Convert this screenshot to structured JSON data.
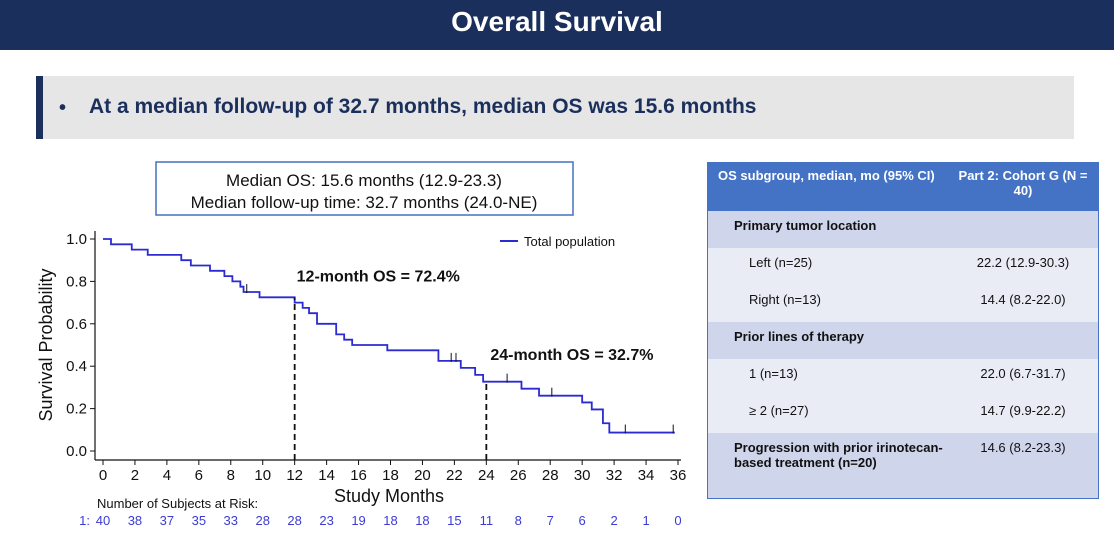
{
  "title": "Overall Survival",
  "banner": {
    "bullet": "•",
    "text": "At a median follow-up of 32.7 months, median OS was 15.6 months"
  },
  "colors": {
    "header_bg": "#1b2f5c",
    "curve": "#2b2bd1",
    "table_header": "#4472c4",
    "row_dark": "#cfd5ea",
    "row_light": "#e9ecf5"
  },
  "chart_data": {
    "type": "line",
    "subtype": "kaplan-meier",
    "summary_box": [
      "Median OS: 15.6 months (12.9-23.3)",
      "Median follow-up time: 32.7 months (24.0-NE)"
    ],
    "xlabel": "Study Months",
    "ylabel": "Survival Probability",
    "xlim": [
      0,
      36
    ],
    "ylim": [
      0,
      1.0
    ],
    "xticks": [
      0,
      2,
      4,
      6,
      8,
      10,
      12,
      14,
      16,
      18,
      20,
      22,
      24,
      26,
      28,
      30,
      32,
      34,
      36
    ],
    "yticks": [
      0.0,
      0.2,
      0.4,
      0.6,
      0.8,
      1.0
    ],
    "ytick_labels": [
      "0.0",
      "0.2",
      "0.4",
      "0.6",
      "0.8",
      "1.0"
    ],
    "legend": {
      "label": "Total population",
      "position": "top-right"
    },
    "series": [
      {
        "name": "Total population",
        "steps": [
          [
            0,
            1.0
          ],
          [
            0.5,
            0.975
          ],
          [
            1.8,
            0.95
          ],
          [
            2.8,
            0.925
          ],
          [
            4.9,
            0.9
          ],
          [
            5.5,
            0.875
          ],
          [
            6.7,
            0.85
          ],
          [
            7.6,
            0.825
          ],
          [
            8.1,
            0.8
          ],
          [
            8.6,
            0.775
          ],
          [
            8.8,
            0.75
          ],
          [
            9.8,
            0.725
          ],
          [
            12.0,
            0.7
          ],
          [
            12.5,
            0.675
          ],
          [
            12.9,
            0.65
          ],
          [
            13.4,
            0.6
          ],
          [
            14.6,
            0.55
          ],
          [
            15.1,
            0.525
          ],
          [
            15.6,
            0.5
          ],
          [
            17.8,
            0.475
          ],
          [
            21.0,
            0.425
          ],
          [
            22.4,
            0.392
          ],
          [
            23.3,
            0.359
          ],
          [
            23.8,
            0.327
          ],
          [
            26.2,
            0.294
          ],
          [
            27.3,
            0.261
          ],
          [
            30.0,
            0.229
          ],
          [
            30.6,
            0.196
          ],
          [
            31.3,
            0.131
          ],
          [
            31.7,
            0.087
          ]
        ],
        "x_end": 35.8,
        "censor_times": [
          9.0,
          21.8,
          22.1,
          25.3,
          28.1,
          32.7,
          35.7
        ]
      }
    ],
    "annotations": [
      {
        "x": 12,
        "y": 0.724,
        "text": "12-month OS = 72.4%"
      },
      {
        "x": 24,
        "y": 0.327,
        "text": "24-month OS = 32.7%"
      }
    ],
    "risk_table": {
      "title": "Number of Subjects at Risk:",
      "row_label": "1:",
      "times": [
        0,
        2,
        4,
        6,
        8,
        10,
        12,
        14,
        16,
        18,
        20,
        22,
        24,
        26,
        28,
        30,
        32,
        34,
        36
      ],
      "counts": [
        40,
        38,
        37,
        35,
        33,
        28,
        28,
        23,
        19,
        18,
        18,
        15,
        11,
        8,
        7,
        6,
        2,
        1,
        0
      ]
    }
  },
  "table": {
    "header_left": "OS subgroup, median, mo (95% CI)",
    "header_right": "Part 2: Cohort G (N = 40)",
    "rows": [
      {
        "kind": "section",
        "label": "Primary tumor location",
        "value": ""
      },
      {
        "kind": "item",
        "label": "Left (n=25)",
        "value": "22.2 (12.9-30.3)"
      },
      {
        "kind": "item",
        "label": "Right (n=13)",
        "value": "14.4 (8.2-22.0)"
      },
      {
        "kind": "section",
        "label": "Prior lines of therapy",
        "value": ""
      },
      {
        "kind": "item",
        "label": "1 (n=13)",
        "value": "22.0 (6.7-31.7)"
      },
      {
        "kind": "item",
        "label": "≥ 2 (n=27)",
        "value": "14.7 (9.9-22.2)"
      },
      {
        "kind": "section",
        "label": "Progression with prior irinotecan-based treatment (n=20)",
        "value": "14.6 (8.2-23.3)"
      }
    ]
  }
}
